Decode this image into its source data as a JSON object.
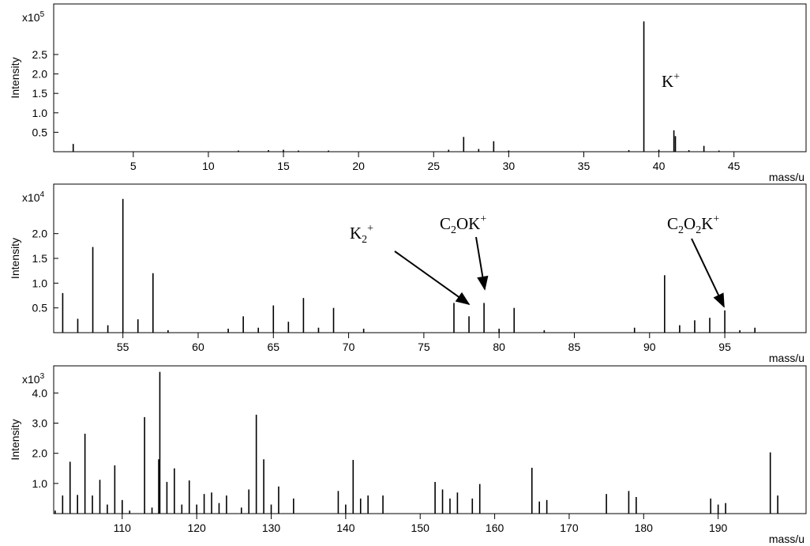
{
  "chart_data": [
    {
      "type": "stem",
      "ylabel": "Intensity",
      "xlabel": "mass/u",
      "scale_base": "x10",
      "scale_exponent": "5",
      "color": "#000000",
      "xlim": [
        -0.3,
        49.8
      ],
      "ylim": [
        0,
        3.8
      ],
      "xticks": [
        5,
        10,
        15,
        20,
        25,
        30,
        35,
        40,
        45
      ],
      "yticks": [
        0.5,
        {
          "value": 1,
          "label": "1.0"
        },
        1.5,
        {
          "value": 2,
          "label": "2.0"
        },
        2.5
      ],
      "x": [
        1,
        12,
        14,
        15,
        16,
        18,
        26,
        27,
        28,
        29,
        30,
        38,
        39,
        40,
        41,
        41.1,
        42,
        43,
        44
      ],
      "values": [
        0.2,
        0.03,
        0.04,
        0.05,
        0.03,
        0.03,
        0.05,
        0.38,
        0.07,
        0.27,
        0.03,
        0.04,
        3.35,
        0.05,
        0.55,
        0.4,
        0.04,
        0.15,
        0.03
      ],
      "annotations": [
        {
          "parts": [
            {
              "text": "K"
            },
            {
              "text": "+",
              "style": "sup"
            }
          ]
        }
      ]
    },
    {
      "type": "stem",
      "ylabel": "Intensity",
      "xlabel": "mass/u",
      "scale_base": "x10",
      "scale_exponent": "4",
      "color": "#000000",
      "xlim": [
        50.4,
        100.4
      ],
      "ylim": [
        0,
        3.0
      ],
      "xticks": [
        55,
        60,
        65,
        70,
        75,
        80,
        85,
        90,
        95
      ],
      "yticks": [
        0.5,
        {
          "value": 1,
          "label": "1.0"
        },
        1.5,
        {
          "value": 2,
          "label": "2.0"
        }
      ],
      "x": [
        51,
        52,
        53,
        54,
        55,
        56,
        57,
        58,
        62,
        63,
        64,
        65,
        66,
        67,
        68,
        69,
        71,
        77,
        78,
        79,
        80,
        81,
        83,
        89,
        91,
        92,
        93,
        94,
        95,
        96,
        97
      ],
      "values": [
        0.8,
        0.28,
        1.73,
        0.15,
        2.7,
        0.27,
        1.2,
        0.05,
        0.08,
        0.33,
        0.1,
        0.55,
        0.22,
        0.7,
        0.1,
        0.5,
        0.08,
        0.6,
        0.33,
        0.6,
        0.08,
        0.5,
        0.05,
        0.1,
        1.16,
        0.15,
        0.25,
        0.3,
        0.45,
        0.05,
        0.1
      ],
      "annotations": [
        {
          "parts": [
            {
              "text": "K"
            },
            {
              "text": "2",
              "style": "sub"
            },
            {
              "text": "+",
              "style": "sup"
            }
          ]
        },
        {
          "parts": [
            {
              "text": "C"
            },
            {
              "text": "2",
              "style": "sub"
            },
            {
              "text": "OK"
            },
            {
              "text": "+",
              "style": "sup"
            }
          ]
        },
        {
          "parts": [
            {
              "text": "C"
            },
            {
              "text": "2",
              "style": "sub"
            },
            {
              "text": "O"
            },
            {
              "text": "2",
              "style": "sub"
            },
            {
              "text": "K"
            },
            {
              "text": "+",
              "style": "sup"
            }
          ]
        }
      ]
    },
    {
      "type": "stem",
      "ylabel": "Intensity",
      "xlabel": "mass/u",
      "scale_base": "x10",
      "scale_exponent": "3",
      "color": "#000000",
      "xlim": [
        100.8,
        201.8
      ],
      "ylim": [
        0,
        4.9
      ],
      "xticks": [
        110,
        120,
        130,
        140,
        150,
        160,
        170,
        180,
        190
      ],
      "yticks": [
        {
          "value": 1,
          "label": "1.0"
        },
        {
          "value": 2,
          "label": "2.0"
        },
        {
          "value": 3,
          "label": "3.0"
        },
        {
          "value": 4,
          "label": "4.0"
        }
      ],
      "x": [
        101,
        102,
        103,
        104,
        105,
        106,
        107,
        108,
        109,
        110,
        111,
        113,
        114,
        114.9,
        115.05,
        116,
        117,
        118,
        119,
        120,
        121,
        122,
        123,
        124,
        126,
        127,
        128,
        129,
        130,
        131,
        133,
        139,
        140,
        141,
        142,
        143,
        145,
        152,
        153,
        154,
        155,
        157,
        158,
        165,
        166,
        167,
        175,
        178,
        179,
        189,
        190,
        191,
        197,
        198
      ],
      "values": [
        0.1,
        0.6,
        1.72,
        0.62,
        2.65,
        0.6,
        1.12,
        0.3,
        1.6,
        0.45,
        0.1,
        3.2,
        0.2,
        1.8,
        4.7,
        1.05,
        1.5,
        0.3,
        1.1,
        0.3,
        0.65,
        0.7,
        0.35,
        0.6,
        0.2,
        0.8,
        3.28,
        1.8,
        0.3,
        0.9,
        0.5,
        0.75,
        0.3,
        1.78,
        0.5,
        0.6,
        0.6,
        1.05,
        0.8,
        0.5,
        0.7,
        0.5,
        0.98,
        1.52,
        0.4,
        0.45,
        0.65,
        0.75,
        0.55,
        0.5,
        0.3,
        0.35,
        2.03,
        0.6
      ],
      "annotations": []
    }
  ]
}
